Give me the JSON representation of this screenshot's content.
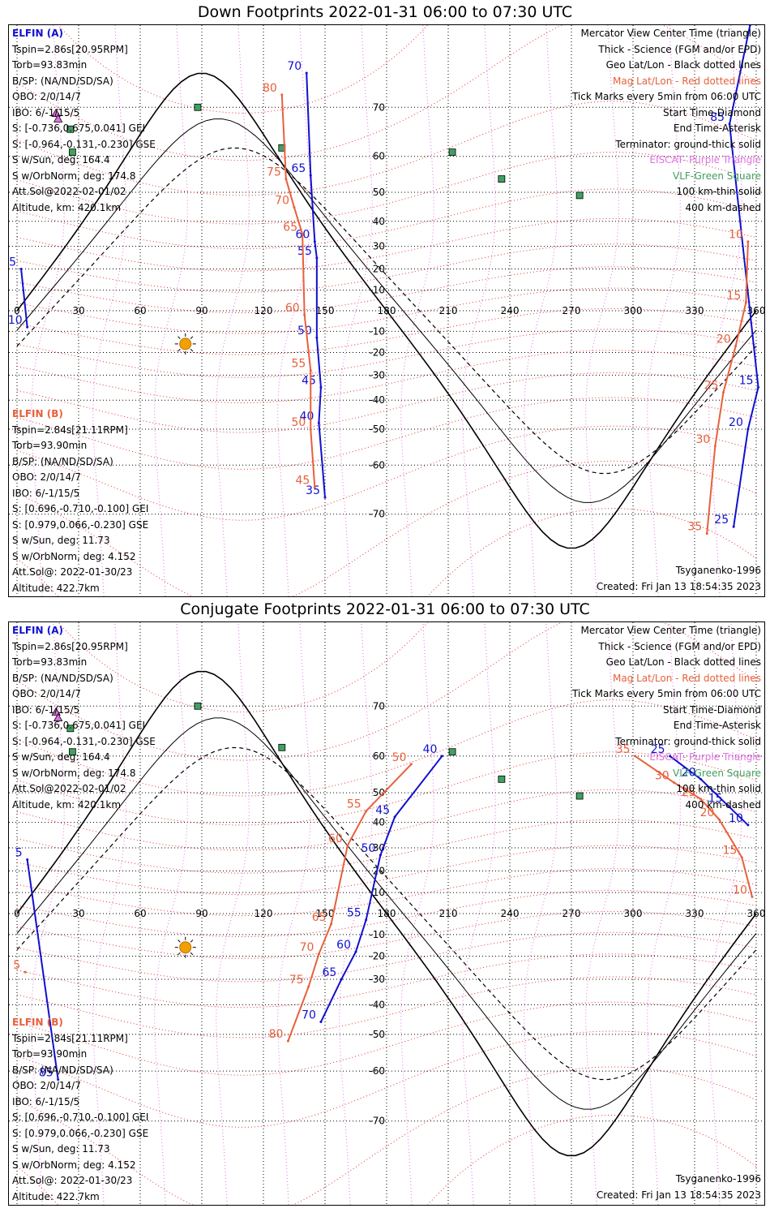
{
  "panels": [
    {
      "title": "Down Footprints 2022-01-31 06:00 to 07:30 UTC",
      "elfin_a": {
        "header": "ELFIN (A)",
        "lines": [
          "Tspin=2.86s[20.95RPM]",
          "Torb=93.83min",
          "B/SP: (NA/ND/SD/SA)",
          "OBO: 2/0/14/7",
          "IBO: 6/-1/15/5",
          "S: [-0.736,0.675,0.041] GEI",
          "S: [-0.964,-0.131,-0.230] GSE",
          "S w/Sun, deg: 164.4",
          "S w/OrbNorm, deg: 174.8",
          "Att.Sol@2022-02-01/02",
          "Altitude, km: 420.1km"
        ]
      },
      "elfin_b": {
        "header": "ELFIN (B)",
        "lines": [
          "Tspin=2.84s[21.11RPM]",
          "Torb=93.90min",
          "B/SP: (NA/ND/SD/SA)",
          "OBO: 2/0/14/7",
          "IBO: 6/-1/15/5",
          "S: [0.696,-0.710,-0.100] GEI",
          "S: [0.979,0.066,-0.230] GSE",
          "S w/Sun, deg: 11.73",
          "S w/OrbNorm, deg: 4.152",
          "Att.Sol@: 2022-01-30/23",
          "Altitude: 422.7km"
        ]
      },
      "legend": [
        {
          "text": "Mercator View Center Time (triangle)",
          "color": "#000000"
        },
        {
          "text": "Thick - Science (FGM and/or EPD)",
          "color": "#000000"
        },
        {
          "text": "Geo Lat/Lon - Black dotted lines",
          "color": "#000000"
        },
        {
          "text": "Mag Lat/Lon - Red dotted lines",
          "color": "#e83030"
        },
        {
          "text": "Tick Marks every 5min from 06:00 UTC",
          "color": "#000000"
        },
        {
          "text": "Start Time-Diamond",
          "color": "#000000"
        },
        {
          "text": "End Time-Asterisk",
          "color": "#000000"
        },
        {
          "text": "Terminator: ground-thick solid",
          "color": "#000000"
        },
        {
          "text": "EISCAT- Purple Triangle",
          "color": "#e070e0"
        },
        {
          "text": "VLF-Green Square",
          "color": "#40a060"
        },
        {
          "text": "100 km-thin solid",
          "color": "#000000"
        },
        {
          "text": "400 km-dashed",
          "color": "#000000"
        }
      ],
      "model": "Tsyganenko-1996",
      "created": "Created: Fri Jan 13 18:54:35 2023"
    },
    {
      "title": "Conjugate Footprints 2022-01-31 06:00 to 07:30 UTC",
      "elfin_a": {
        "header": "ELFIN (A)",
        "lines": [
          "Tspin=2.86s[20.95RPM]",
          "Torb=93.83min",
          "B/SP: (NA/ND/SD/SA)",
          "OBO: 2/0/14/7",
          "IBO: 6/-1/15/5",
          "S: [-0.736,0.675,0.041] GEI",
          "S: [-0.964,-0.131,-0.230] GSE",
          "S w/Sun, deg: 164.4",
          "S w/OrbNorm, deg: 174.8",
          "Att.Sol@2022-02-01/02",
          "Altitude, km: 420.1km"
        ]
      },
      "elfin_b": {
        "header": "ELFIN (B)",
        "lines": [
          "Tspin=2.84s[21.11RPM]",
          "Torb=93.90min",
          "B/SP: (NA/ND/SD/SA)",
          "OBO: 2/0/14/7",
          "IBO: 6/-1/15/5",
          "S: [0.696,-0.710,-0.100] GEI",
          "S: [0.979,0.066,-0.230] GSE",
          "S w/Sun, deg: 11.73",
          "S w/OrbNorm, deg: 4.152",
          "Att.Sol@: 2022-01-30/23",
          "Altitude: 422.7km"
        ]
      },
      "legend": [
        {
          "text": "Mercator View Center Time (triangle)",
          "color": "#000000"
        },
        {
          "text": "Thick - Science (FGM and/or EPD)",
          "color": "#000000"
        },
        {
          "text": "Geo Lat/Lon - Black dotted lines",
          "color": "#000000"
        },
        {
          "text": "Mag Lat/Lon - Red dotted lines",
          "color": "#e83030"
        },
        {
          "text": "Tick Marks every 5min from 06:00 UTC",
          "color": "#000000"
        },
        {
          "text": "Start Time-Diamond",
          "color": "#000000"
        },
        {
          "text": "End Time-Asterisk",
          "color": "#000000"
        },
        {
          "text": "Terminator: ground-thick solid",
          "color": "#000000"
        },
        {
          "text": "EISCAT- Purple Triangle",
          "color": "#e070e0"
        },
        {
          "text": "VLF-Green Square",
          "color": "#40a060"
        },
        {
          "text": "100 km-thin solid",
          "color": "#000000"
        },
        {
          "text": "400 km-dashed",
          "color": "#000000"
        }
      ],
      "model": "Tsyganenko-1996",
      "created": "Created: Fri Jan 13 18:54:35 2023"
    }
  ],
  "chart_data": [
    {
      "type": "map",
      "title": "Down Footprints 2022-01-31 06:00 to 07:30 UTC",
      "projection": "mercator",
      "xlim": [
        0,
        360
      ],
      "ylim": [
        -80,
        80
      ],
      "lon_ticks": [
        0,
        30,
        60,
        90,
        120,
        150,
        180,
        210,
        240,
        270,
        300,
        330,
        360
      ],
      "lat_ticks": [
        70,
        60,
        50,
        40,
        30,
        20,
        10,
        -10,
        -20,
        -30,
        -40,
        -50,
        -60,
        -70
      ],
      "sun": {
        "lon": 82,
        "lat": -16
      },
      "vlf_stations": [
        {
          "lon": 26,
          "lat": 66
        },
        {
          "lon": 27,
          "lat": 61
        },
        {
          "lon": 88,
          "lat": 70
        },
        {
          "lon": 129,
          "lat": 62
        },
        {
          "lon": 212,
          "lat": 61
        },
        {
          "lon": 236,
          "lat": 54
        },
        {
          "lon": 274,
          "lat": 49
        }
      ],
      "eiscat": [
        {
          "lon": 19,
          "lat": 69
        },
        {
          "lon": 20,
          "lat": 68
        }
      ],
      "series": [
        {
          "name": "ELFIN (A)",
          "color": "#1010d0",
          "points": [
            {
              "lon": 2,
              "lat": 20,
              "label": "5"
            },
            {
              "lon": 5,
              "lat": -8,
              "label": "10"
            },
            {
              "lon": 141,
              "lat": 75,
              "label": "70"
            },
            {
              "lon": 143,
              "lat": 55,
              "label": "65"
            },
            {
              "lon": 145,
              "lat": 32,
              "label": "60"
            },
            {
              "lon": 146,
              "lat": 25,
              "label": "55"
            },
            {
              "lon": 146,
              "lat": -13,
              "label": "50"
            },
            {
              "lon": 148,
              "lat": -35,
              "label": "45"
            },
            {
              "lon": 147,
              "lat": -48,
              "label": "40"
            },
            {
              "lon": 150,
              "lat": -67,
              "label": "35"
            },
            {
              "lon": 357,
              "lat": 80,
              "label": "80"
            },
            {
              "lon": 347,
              "lat": 67,
              "label": "85"
            },
            {
              "lon": 361,
              "lat": -35,
              "label": "15"
            },
            {
              "lon": 356,
              "lat": -50,
              "label": "20"
            },
            {
              "lon": 349,
              "lat": -72,
              "label": "25"
            }
          ]
        },
        {
          "name": "ELFIN (B)",
          "color": "#e8603c",
          "points": [
            {
              "lon": 129,
              "lat": 72,
              "label": "80"
            },
            {
              "lon": 131,
              "lat": 54,
              "label": "75"
            },
            {
              "lon": 135,
              "lat": 45,
              "label": "70"
            },
            {
              "lon": 139,
              "lat": 35,
              "label": "65"
            },
            {
              "lon": 140,
              "lat": -2,
              "label": "60"
            },
            {
              "lon": 143,
              "lat": -28,
              "label": "55"
            },
            {
              "lon": 143,
              "lat": -50,
              "label": "50"
            },
            {
              "lon": 145,
              "lat": -65,
              "label": "45"
            },
            {
              "lon": 356,
              "lat": 32,
              "label": "10"
            },
            {
              "lon": 355,
              "lat": 4,
              "label": "15"
            },
            {
              "lon": 350,
              "lat": -17,
              "label": "20"
            },
            {
              "lon": 344,
              "lat": -37,
              "label": "25"
            },
            {
              "lon": 340,
              "lat": -55,
              "label": "30"
            },
            {
              "lon": 336,
              "lat": -73,
              "label": "35"
            }
          ]
        }
      ]
    },
    {
      "type": "map",
      "title": "Conjugate Footprints 2022-01-31 06:00 to 07:30 UTC",
      "projection": "mercator",
      "xlim": [
        0,
        360
      ],
      "ylim": [
        -80,
        80
      ],
      "lon_ticks": [
        0,
        30,
        60,
        90,
        120,
        150,
        180,
        210,
        240,
        270,
        300,
        330,
        360
      ],
      "lat_ticks": [
        70,
        60,
        50,
        40,
        30,
        20,
        10,
        -10,
        -20,
        -30,
        -40,
        -50,
        -60,
        -70
      ],
      "sun": {
        "lon": 82,
        "lat": -16
      },
      "vlf_stations": [
        {
          "lon": 26,
          "lat": 66
        },
        {
          "lon": 27,
          "lat": 61
        },
        {
          "lon": 88,
          "lat": 70
        },
        {
          "lon": 129,
          "lat": 62
        },
        {
          "lon": 212,
          "lat": 61
        },
        {
          "lon": 236,
          "lat": 54
        },
        {
          "lon": 274,
          "lat": 49
        }
      ],
      "eiscat": [
        {
          "lon": 19,
          "lat": 69
        },
        {
          "lon": 20,
          "lat": 68
        }
      ],
      "series": [
        {
          "name": "ELFIN (A)",
          "color": "#1010d0",
          "points": [
            {
              "lon": 5,
              "lat": 25,
              "label": "5"
            },
            {
              "lon": 20,
              "lat": -62,
              "label": "85"
            },
            {
              "lon": 207,
              "lat": 60,
              "label": "40"
            },
            {
              "lon": 184,
              "lat": 42,
              "label": "45"
            },
            {
              "lon": 177,
              "lat": 27,
              "label": "50"
            },
            {
              "lon": 170,
              "lat": -3,
              "label": "55"
            },
            {
              "lon": 165,
              "lat": -18,
              "label": "60"
            },
            {
              "lon": 158,
              "lat": -30,
              "label": "65"
            },
            {
              "lon": 148,
              "lat": -46,
              "label": "70"
            },
            {
              "lon": 318,
              "lat": 60,
              "label": "25"
            },
            {
              "lon": 333,
              "lat": 54,
              "label": "20"
            },
            {
              "lon": 346,
              "lat": 46,
              "label": "15"
            },
            {
              "lon": 356,
              "lat": 39,
              "label": "10"
            }
          ]
        },
        {
          "name": "ELFIN (B)",
          "color": "#e8603c",
          "points": [
            {
              "lon": 4,
              "lat": -27,
              "label": "5"
            },
            {
              "lon": 192,
              "lat": 58,
              "label": "50"
            },
            {
              "lon": 170,
              "lat": 44,
              "label": "55"
            },
            {
              "lon": 161,
              "lat": 31,
              "label": "60"
            },
            {
              "lon": 153,
              "lat": -5,
              "label": "65"
            },
            {
              "lon": 147,
              "lat": -19,
              "label": "70"
            },
            {
              "lon": 142,
              "lat": -33,
              "label": "75"
            },
            {
              "lon": 132,
              "lat": -52,
              "label": "80"
            },
            {
              "lon": 301,
              "lat": 60,
              "label": "35"
            },
            {
              "lon": 320,
              "lat": 53,
              "label": "30"
            },
            {
              "lon": 333,
              "lat": 48,
              "label": "25"
            },
            {
              "lon": 342,
              "lat": 41,
              "label": "20"
            },
            {
              "lon": 353,
              "lat": 26,
              "label": "15"
            },
            {
              "lon": 358,
              "lat": 8,
              "label": "10"
            }
          ]
        }
      ]
    }
  ]
}
